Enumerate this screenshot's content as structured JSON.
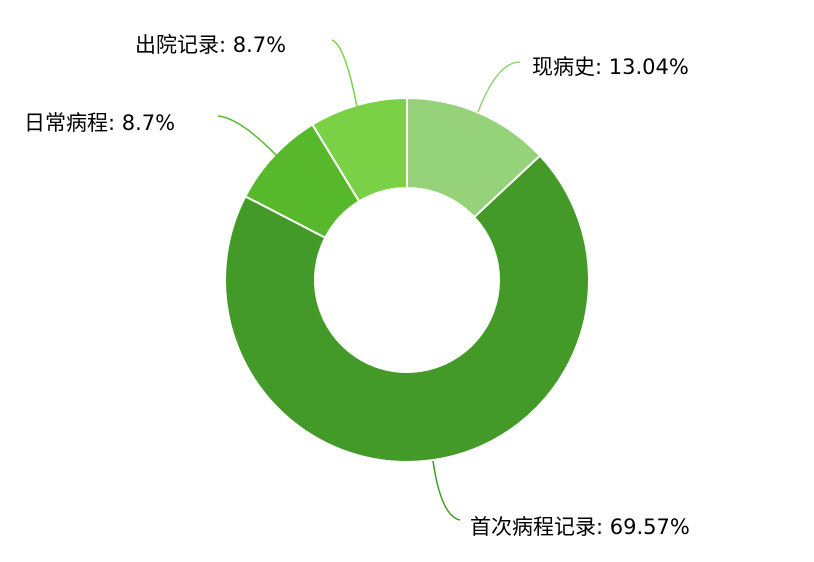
{
  "chart_data": {
    "type": "pie",
    "variant": "donut",
    "title": "",
    "legend": "none",
    "label_format": "name: percent",
    "slices": [
      {
        "name": "现病史",
        "value": 13.04,
        "label": "现病史: 13.04%",
        "color": "#95d27a"
      },
      {
        "name": "首次病程记录",
        "value": 69.57,
        "label": "首次病程记录: 69.57%",
        "color": "#439a29"
      },
      {
        "name": "日常病程",
        "value": 8.7,
        "label": "日常病程: 8.7%",
        "color": "#57b82c"
      },
      {
        "name": "出院记录",
        "value": 8.7,
        "label": "出院记录: 8.7%",
        "color": "#7bd146"
      }
    ]
  }
}
